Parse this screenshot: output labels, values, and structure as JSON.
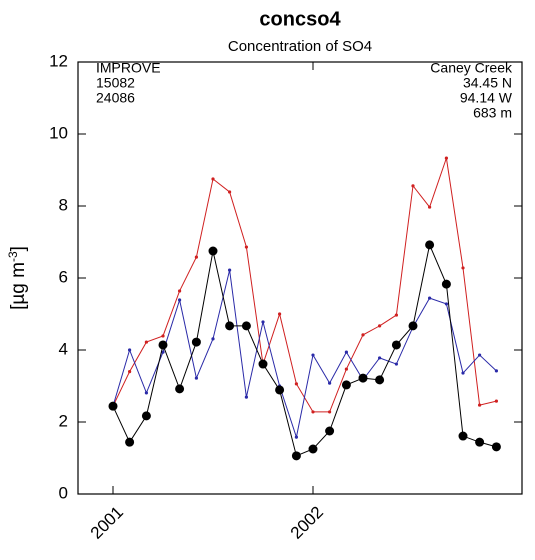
{
  "chart_data": {
    "type": "line",
    "title": "concso4",
    "subtitle": "Concentration of SO4",
    "y_label_parts": [
      "[µg m",
      "-3",
      "]"
    ],
    "annotations_left": [
      "IMPROVE"
    ],
    "annotations_right": [
      "Caney Creek",
      "34.45 N",
      "94.14 W",
      "683 m"
    ],
    "x": [
      2001,
      2001.083,
      2001.167,
      2001.25,
      2001.333,
      2001.417,
      2001.5,
      2001.583,
      2001.667,
      2001.75,
      2001.833,
      2001.917,
      2002,
      2002.083,
      2002.167,
      2002.25,
      2002.333,
      2002.417,
      2002.5,
      2002.583,
      2002.667,
      2002.75,
      2002.833,
      2002.917
    ],
    "xlim": [
      2000.825,
      2003.045
    ],
    "xticks": [
      2001,
      2002
    ],
    "ylim": [
      0,
      12
    ],
    "yticks": [
      0,
      2,
      4,
      6,
      8,
      10,
      12
    ],
    "grid": false,
    "series": [
      {
        "name": "IMPROVE",
        "color": "#000000",
        "marker": "large",
        "values": [
          2.44,
          1.44,
          2.17,
          4.14,
          2.92,
          4.22,
          6.75,
          4.67,
          4.67,
          3.61,
          2.89,
          1.06,
          1.25,
          1.75,
          3.03,
          3.22,
          3.17,
          4.14,
          4.67,
          6.92,
          5.83,
          1.61,
          1.44,
          1.31
        ]
      },
      {
        "name": "15082",
        "color": "#d02020",
        "marker": "small",
        "values": [
          2.44,
          3.4,
          4.22,
          4.39,
          5.64,
          6.58,
          8.75,
          8.39,
          6.86,
          3.61,
          5.0,
          3.06,
          2.28,
          2.28,
          3.47,
          4.42,
          4.67,
          4.97,
          8.56,
          7.97,
          9.33,
          6.28,
          2.47,
          2.58
        ]
      },
      {
        "name": "24086",
        "color": "#2a2aa8",
        "marker": "small",
        "values": [
          2.44,
          4.0,
          2.81,
          3.94,
          5.39,
          3.22,
          4.31,
          6.22,
          2.69,
          4.78,
          3.0,
          1.58,
          3.86,
          3.08,
          3.94,
          3.17,
          3.78,
          3.61,
          4.64,
          5.44,
          5.28,
          3.36,
          3.86,
          3.42
        ]
      }
    ]
  }
}
